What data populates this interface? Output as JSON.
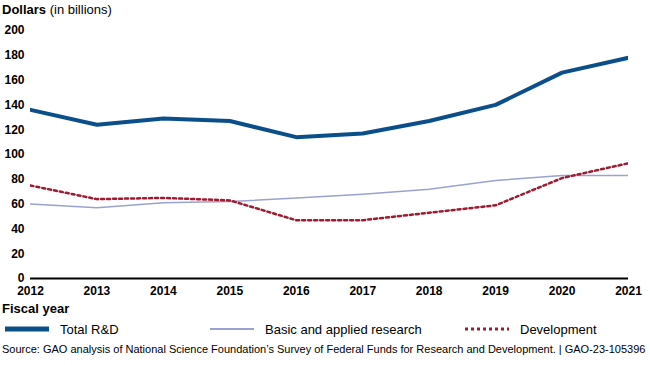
{
  "chart_data": {
    "type": "line",
    "y_label": "Dollars (in billions)",
    "x_label": "Fiscal year",
    "source": "Source: GAO analysis of National Science Foundation’s Survey of Federal Funds for Research and Development.  |  GAO-23-105396",
    "x": [
      2012,
      2013,
      2014,
      2015,
      2016,
      2017,
      2018,
      2019,
      2020,
      2021
    ],
    "xlim": [
      2012,
      2021
    ],
    "xticks": [
      2012,
      2013,
      2014,
      2015,
      2016,
      2017,
      2018,
      2019,
      2020,
      2021
    ],
    "ylim": [
      0,
      200
    ],
    "yticks": [
      0,
      20,
      40,
      60,
      80,
      100,
      120,
      140,
      160,
      180,
      200
    ],
    "grid": false,
    "legend": "bottom",
    "series": [
      {
        "name": "Total R&D",
        "color": "#0b4f8a",
        "line_style": "solid",
        "values": [
          136,
          124,
          129,
          127,
          114,
          117,
          127,
          140,
          166,
          178
        ]
      },
      {
        "name": "Basic and applied research",
        "color": "#9aa3cf",
        "line_style": "solid",
        "values": [
          60,
          57,
          61,
          62,
          65,
          68,
          72,
          79,
          83,
          83
        ]
      },
      {
        "name": "Development",
        "color": "#9e1b32",
        "line_style": "dotted",
        "values": [
          75,
          64,
          65,
          63,
          47,
          47,
          53,
          59,
          81,
          93
        ]
      }
    ]
  }
}
